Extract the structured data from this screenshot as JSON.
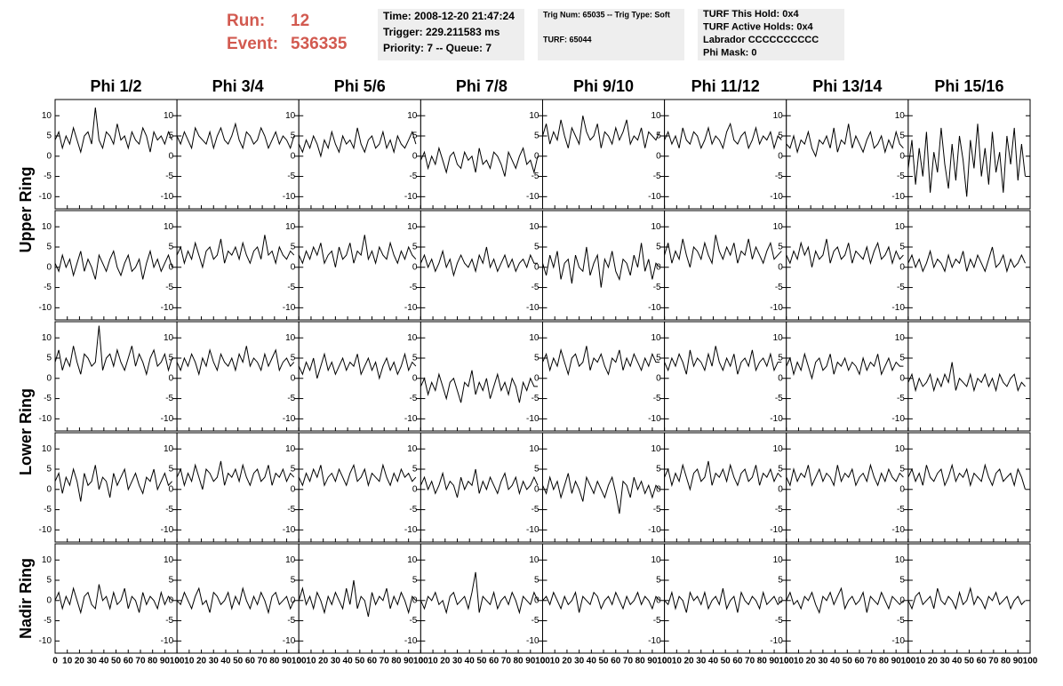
{
  "header": {
    "run_label": "Run:",
    "run": "12",
    "event_label": "Event:",
    "event": "536335",
    "info": [
      [
        "Time: 2008-12-20 21:47:24",
        "Trigger: 229.211583 ms",
        "Priority: 7 -- Queue: 7"
      ],
      [
        "Trig Num: 65035 -- Trig Type: Soft",
        "TURF: 65044"
      ],
      [
        "TURF This Hold: 0x4",
        "TURF Active Holds: 0x4",
        "Labrador CCCCCCCCCC",
        "Phi Mask: 0"
      ]
    ]
  },
  "columns": [
    "Phi 1/2",
    "Phi 3/4",
    "Phi 5/6",
    "Phi 7/8",
    "Phi 9/10",
    "Phi 11/12",
    "Phi 13/14",
    "Phi 15/16"
  ],
  "rings": [
    "Upper Ring",
    "Lower Ring",
    "Nadir Ring"
  ],
  "axes": {
    "x": [
      0,
      3,
      6,
      9,
      12,
      15,
      18,
      21,
      24,
      27,
      30,
      33,
      36,
      39,
      42,
      45,
      48,
      51,
      54,
      57,
      60,
      63,
      66,
      69,
      72,
      75,
      78,
      81,
      84,
      87,
      90,
      93,
      96
    ],
    "xlim": [
      0,
      100
    ],
    "xticks": [
      0,
      10,
      20,
      30,
      40,
      50,
      60,
      70,
      80,
      90,
      100
    ],
    "ylim": [
      -13,
      14
    ],
    "yticks": [
      -10,
      -5,
      0,
      5,
      10
    ]
  },
  "chart_data": [
    {
      "type": "line",
      "color": "#000000",
      "values": [
        4,
        6,
        2,
        5,
        3,
        7,
        4,
        1,
        5,
        6,
        3,
        12,
        4,
        2,
        6,
        5,
        3,
        8,
        4,
        5,
        2,
        6,
        4,
        3,
        7,
        5,
        1,
        6,
        4,
        5,
        3,
        6,
        4
      ]
    },
    {
      "type": "line",
      "color": "#000000",
      "values": [
        5,
        3,
        6,
        4,
        2,
        7,
        5,
        4,
        3,
        6,
        2,
        5,
        7,
        4,
        3,
        5,
        8,
        4,
        2,
        6,
        5,
        3,
        4,
        7,
        5,
        2,
        4,
        6,
        3,
        5,
        4,
        2,
        5
      ]
    },
    {
      "type": "line",
      "color": "#000000",
      "values": [
        3,
        1,
        4,
        2,
        5,
        3,
        0,
        4,
        2,
        6,
        3,
        1,
        5,
        3,
        4,
        2,
        7,
        3,
        1,
        4,
        5,
        2,
        3,
        6,
        2,
        4,
        1,
        5,
        3,
        2,
        4,
        6,
        3
      ]
    },
    {
      "type": "line",
      "color": "#000000",
      "values": [
        -1,
        1,
        -3,
        0,
        -2,
        2,
        -1,
        -4,
        0,
        1,
        -2,
        -3,
        1,
        -1,
        0,
        -4,
        2,
        -2,
        -1,
        -3,
        1,
        0,
        -2,
        -5,
        1,
        -1,
        -3,
        0,
        2,
        -2,
        -1,
        -4,
        0
      ]
    },
    {
      "type": "line",
      "color": "#000000",
      "values": [
        5,
        8,
        3,
        6,
        4,
        9,
        5,
        2,
        7,
        5,
        3,
        10,
        6,
        4,
        5,
        8,
        2,
        6,
        5,
        3,
        7,
        4,
        6,
        9,
        3,
        5,
        4,
        7,
        2,
        6,
        5,
        4,
        6
      ]
    },
    {
      "type": "line",
      "color": "#000000",
      "values": [
        4,
        6,
        3,
        5,
        2,
        7,
        4,
        3,
        6,
        5,
        2,
        4,
        7,
        3,
        5,
        4,
        2,
        6,
        8,
        4,
        3,
        5,
        6,
        2,
        4,
        7,
        3,
        5,
        4,
        6,
        2,
        5,
        4
      ]
    },
    {
      "type": "line",
      "color": "#000000",
      "values": [
        3,
        2,
        5,
        1,
        4,
        3,
        6,
        2,
        0,
        4,
        3,
        5,
        2,
        7,
        1,
        4,
        3,
        8,
        2,
        5,
        3,
        1,
        4,
        6,
        2,
        3,
        5,
        1,
        4,
        2,
        6,
        3,
        2
      ]
    },
    {
      "type": "line",
      "color": "#000000",
      "values": [
        -3,
        4,
        -7,
        2,
        -5,
        6,
        -9,
        1,
        -4,
        7,
        -2,
        -8,
        3,
        -6,
        5,
        -1,
        -10,
        4,
        -3,
        8,
        -5,
        2,
        -7,
        6,
        -4,
        1,
        -9,
        5,
        -2,
        7,
        -6,
        3,
        -5
      ]
    },
    {
      "type": "line",
      "color": "#000000",
      "values": [
        1,
        -1,
        3,
        0,
        2,
        -2,
        1,
        4,
        -1,
        2,
        0,
        -3,
        3,
        1,
        -1,
        2,
        4,
        0,
        -2,
        1,
        3,
        -1,
        0,
        2,
        -3,
        1,
        4,
        0,
        2,
        -1,
        1,
        3,
        0
      ]
    },
    {
      "type": "line",
      "color": "#000000",
      "values": [
        3,
        5,
        1,
        4,
        2,
        6,
        3,
        0,
        4,
        5,
        2,
        3,
        7,
        1,
        4,
        3,
        5,
        2,
        6,
        3,
        1,
        4,
        5,
        2,
        8,
        3,
        4,
        1,
        5,
        3,
        2,
        4,
        3
      ]
    },
    {
      "type": "line",
      "color": "#000000",
      "values": [
        3,
        1,
        4,
        2,
        5,
        3,
        6,
        1,
        3,
        4,
        0,
        5,
        2,
        3,
        6,
        1,
        4,
        3,
        8,
        2,
        4,
        1,
        5,
        3,
        2,
        6,
        3,
        1,
        4,
        2,
        5,
        3,
        2
      ]
    },
    {
      "type": "line",
      "color": "#000000",
      "values": [
        1,
        3,
        0,
        2,
        -1,
        1,
        4,
        0,
        2,
        -2,
        1,
        3,
        1,
        0,
        2,
        -1,
        3,
        1,
        5,
        0,
        2,
        -1,
        1,
        3,
        0,
        2,
        -1,
        1,
        2,
        0,
        3,
        1,
        1
      ]
    },
    {
      "type": "line",
      "color": "#000000",
      "values": [
        1,
        -2,
        3,
        0,
        4,
        -3,
        1,
        2,
        -4,
        3,
        0,
        -1,
        5,
        -2,
        1,
        3,
        -5,
        2,
        0,
        4,
        -1,
        -3,
        2,
        1,
        -2,
        3,
        0,
        6,
        -1,
        2,
        -3,
        1,
        0
      ]
    },
    {
      "type": "line",
      "color": "#000000",
      "values": [
        3,
        6,
        1,
        4,
        2,
        7,
        3,
        0,
        5,
        4,
        2,
        6,
        3,
        1,
        8,
        4,
        2,
        5,
        3,
        6,
        1,
        4,
        3,
        7,
        2,
        5,
        3,
        1,
        4,
        6,
        2,
        3,
        4
      ]
    },
    {
      "type": "line",
      "color": "#000000",
      "values": [
        3,
        1,
        4,
        2,
        6,
        3,
        5,
        0,
        4,
        2,
        3,
        7,
        1,
        4,
        5,
        2,
        3,
        6,
        1,
        4,
        3,
        2,
        5,
        1,
        4,
        6,
        2,
        3,
        5,
        1,
        4,
        2,
        3
      ]
    },
    {
      "type": "line",
      "color": "#000000",
      "values": [
        1,
        3,
        0,
        2,
        -1,
        1,
        4,
        0,
        2,
        1,
        -1,
        3,
        0,
        2,
        1,
        4,
        -1,
        2,
        0,
        3,
        1,
        -1,
        2,
        5,
        0,
        1,
        3,
        -1,
        2,
        0,
        1,
        3,
        1
      ]
    },
    {
      "type": "line",
      "color": "#000000",
      "values": [
        4,
        7,
        2,
        5,
        3,
        8,
        4,
        1,
        6,
        5,
        3,
        4,
        13,
        2,
        5,
        6,
        3,
        7,
        4,
        2,
        5,
        8,
        3,
        6,
        4,
        1,
        5,
        7,
        3,
        4,
        6,
        2,
        5
      ]
    },
    {
      "type": "line",
      "color": "#000000",
      "values": [
        4,
        2,
        5,
        3,
        6,
        4,
        1,
        5,
        3,
        7,
        4,
        2,
        6,
        4,
        3,
        5,
        2,
        6,
        4,
        8,
        3,
        5,
        4,
        2,
        6,
        3,
        5,
        7,
        2,
        4,
        5,
        3,
        4
      ]
    },
    {
      "type": "line",
      "color": "#000000",
      "values": [
        3,
        1,
        4,
        2,
        5,
        0,
        3,
        6,
        2,
        4,
        1,
        3,
        5,
        2,
        4,
        3,
        6,
        1,
        3,
        5,
        2,
        4,
        0,
        3,
        5,
        2,
        4,
        1,
        3,
        6,
        2,
        4,
        3
      ]
    },
    {
      "type": "line",
      "color": "#000000",
      "values": [
        -2,
        0,
        -4,
        -1,
        -3,
        1,
        -2,
        -5,
        -1,
        0,
        -3,
        -6,
        -1,
        -2,
        2,
        -4,
        -1,
        -3,
        0,
        -5,
        -2,
        1,
        -3,
        -1,
        -4,
        0,
        -2,
        -6,
        -1,
        -3,
        0,
        -2,
        -2
      ]
    },
    {
      "type": "line",
      "color": "#000000",
      "values": [
        4,
        6,
        2,
        5,
        3,
        7,
        4,
        1,
        5,
        6,
        3,
        4,
        8,
        2,
        5,
        4,
        6,
        3,
        1,
        5,
        4,
        7,
        2,
        5,
        3,
        6,
        4,
        2,
        5,
        3,
        6,
        4,
        4
      ]
    },
    {
      "type": "line",
      "color": "#000000",
      "values": [
        4,
        2,
        5,
        3,
        6,
        4,
        1,
        7,
        3,
        5,
        4,
        2,
        6,
        3,
        8,
        4,
        2,
        5,
        3,
        6,
        1,
        4,
        5,
        3,
        7,
        2,
        4,
        5,
        3,
        6,
        2,
        4,
        4
      ]
    },
    {
      "type": "line",
      "color": "#000000",
      "values": [
        3,
        5,
        1,
        4,
        2,
        6,
        3,
        0,
        4,
        5,
        2,
        3,
        6,
        1,
        4,
        3,
        5,
        2,
        4,
        3,
        1,
        5,
        2,
        4,
        3,
        6,
        1,
        3,
        5,
        2,
        4,
        3,
        3
      ]
    },
    {
      "type": "line",
      "color": "#000000",
      "values": [
        -1,
        1,
        -3,
        0,
        -2,
        -1,
        1,
        -3,
        0,
        -2,
        1,
        -1,
        4,
        -3,
        0,
        -1,
        -2,
        1,
        -3,
        0,
        -1,
        1,
        -2,
        0,
        -3,
        1,
        -1,
        -2,
        0,
        1,
        -3,
        -1,
        -2
      ]
    },
    {
      "type": "line",
      "color": "#000000",
      "values": [
        2,
        4,
        -1,
        3,
        1,
        5,
        2,
        -3,
        4,
        1,
        2,
        6,
        0,
        3,
        2,
        -2,
        4,
        1,
        3,
        5,
        0,
        2,
        4,
        1,
        -1,
        3,
        2,
        5,
        0,
        2,
        4,
        1,
        2
      ]
    },
    {
      "type": "line",
      "color": "#000000",
      "values": [
        3,
        5,
        1,
        4,
        2,
        6,
        3,
        0,
        5,
        4,
        2,
        3,
        7,
        1,
        4,
        3,
        5,
        2,
        6,
        3,
        1,
        4,
        5,
        2,
        3,
        6,
        1,
        4,
        3,
        5,
        2,
        4,
        3
      ]
    },
    {
      "type": "line",
      "color": "#000000",
      "values": [
        3,
        1,
        4,
        2,
        5,
        3,
        6,
        1,
        3,
        4,
        2,
        5,
        3,
        1,
        4,
        6,
        2,
        3,
        5,
        1,
        4,
        3,
        2,
        6,
        3,
        1,
        4,
        2,
        5,
        3,
        4,
        2,
        3
      ]
    },
    {
      "type": "line",
      "color": "#000000",
      "values": [
        1,
        3,
        0,
        2,
        -1,
        1,
        4,
        0,
        2,
        1,
        -2,
        3,
        0,
        2,
        1,
        5,
        -1,
        2,
        0,
        3,
        1,
        -1,
        2,
        4,
        0,
        1,
        3,
        -1,
        2,
        0,
        1,
        3,
        1
      ]
    },
    {
      "type": "line",
      "color": "#000000",
      "values": [
        1,
        -1,
        3,
        0,
        2,
        -2,
        1,
        4,
        -1,
        2,
        0,
        -3,
        3,
        1,
        -1,
        2,
        0,
        -2,
        1,
        3,
        -1,
        -6,
        2,
        1,
        -2,
        3,
        0,
        2,
        -1,
        1,
        -2,
        1,
        0
      ]
    },
    {
      "type": "line",
      "color": "#000000",
      "values": [
        3,
        5,
        1,
        4,
        2,
        6,
        3,
        0,
        4,
        5,
        2,
        3,
        7,
        1,
        4,
        3,
        5,
        2,
        6,
        3,
        1,
        4,
        5,
        2,
        3,
        6,
        1,
        4,
        3,
        5,
        2,
        4,
        3
      ]
    },
    {
      "type": "line",
      "color": "#000000",
      "values": [
        3,
        1,
        5,
        2,
        4,
        3,
        6,
        1,
        3,
        5,
        2,
        4,
        3,
        1,
        6,
        2,
        4,
        3,
        5,
        1,
        3,
        4,
        2,
        6,
        3,
        1,
        4,
        2,
        5,
        3,
        2,
        4,
        3
      ]
    },
    {
      "type": "line",
      "color": "#000000",
      "values": [
        3,
        5,
        2,
        4,
        1,
        6,
        3,
        2,
        4,
        5,
        1,
        3,
        6,
        2,
        4,
        3,
        5,
        1,
        4,
        3,
        2,
        6,
        3,
        1,
        4,
        5,
        2,
        3,
        4,
        1,
        5,
        3,
        0
      ]
    },
    {
      "type": "line",
      "color": "#000000",
      "values": [
        0,
        2,
        -2,
        1,
        -1,
        3,
        0,
        -3,
        1,
        2,
        -1,
        -2,
        4,
        0,
        1,
        -2,
        2,
        -1,
        0,
        3,
        -2,
        1,
        0,
        -3,
        2,
        -1,
        1,
        0,
        -2,
        2,
        -1,
        1,
        0
      ]
    },
    {
      "type": "line",
      "color": "#000000",
      "values": [
        0,
        -1,
        2,
        0,
        -2,
        1,
        3,
        -1,
        0,
        -3,
        2,
        1,
        -1,
        0,
        2,
        -2,
        1,
        -1,
        3,
        0,
        -2,
        1,
        -1,
        2,
        0,
        -3,
        1,
        2,
        -1,
        0,
        1,
        -2,
        0
      ]
    },
    {
      "type": "line",
      "color": "#000000",
      "values": [
        0,
        3,
        -1,
        1,
        -2,
        2,
        0,
        -3,
        1,
        -1,
        2,
        0,
        -2,
        3,
        -1,
        5,
        -2,
        1,
        0,
        -4,
        2,
        -1,
        1,
        0,
        3,
        -2,
        1,
        -1,
        2,
        0,
        -3,
        1,
        0
      ]
    },
    {
      "type": "line",
      "color": "#000000",
      "values": [
        0,
        -2,
        1,
        0,
        2,
        -1,
        0,
        -3,
        1,
        2,
        -1,
        0,
        1,
        -2,
        2,
        7,
        -3,
        1,
        0,
        -1,
        2,
        -2,
        0,
        1,
        -1,
        2,
        0,
        -3,
        1,
        0,
        -1,
        2,
        0
      ]
    },
    {
      "type": "line",
      "color": "#000000",
      "values": [
        0,
        1,
        -1,
        2,
        0,
        -2,
        1,
        -1,
        0,
        2,
        -3,
        1,
        0,
        -1,
        2,
        1,
        -2,
        0,
        1,
        -1,
        2,
        0,
        -2,
        1,
        -1,
        0,
        2,
        -1,
        1,
        0,
        -2,
        1,
        0
      ]
    },
    {
      "type": "line",
      "color": "#000000",
      "values": [
        0,
        -1,
        2,
        -2,
        1,
        0,
        -3,
        2,
        0,
        1,
        -1,
        2,
        -2,
        0,
        1,
        -1,
        3,
        -2,
        0,
        1,
        -3,
        2,
        0,
        -1,
        1,
        0,
        -2,
        2,
        -1,
        0,
        1,
        -1,
        0
      ]
    },
    {
      "type": "line",
      "color": "#000000",
      "values": [
        0,
        2,
        -1,
        0,
        -2,
        1,
        0,
        2,
        -1,
        -3,
        1,
        0,
        2,
        -1,
        1,
        3,
        -2,
        0,
        1,
        -1,
        0,
        2,
        -3,
        1,
        0,
        -1,
        2,
        0,
        -2,
        1,
        0,
        -1,
        0
      ]
    },
    {
      "type": "line",
      "color": "#000000",
      "values": [
        0,
        -2,
        1,
        2,
        -1,
        0,
        1,
        -2,
        3,
        0,
        -1,
        1,
        0,
        -2,
        2,
        -1,
        0,
        3,
        -1,
        1,
        0,
        -2,
        1,
        0,
        2,
        -1,
        0,
        1,
        -2,
        0,
        1,
        -1,
        0
      ]
    }
  ]
}
